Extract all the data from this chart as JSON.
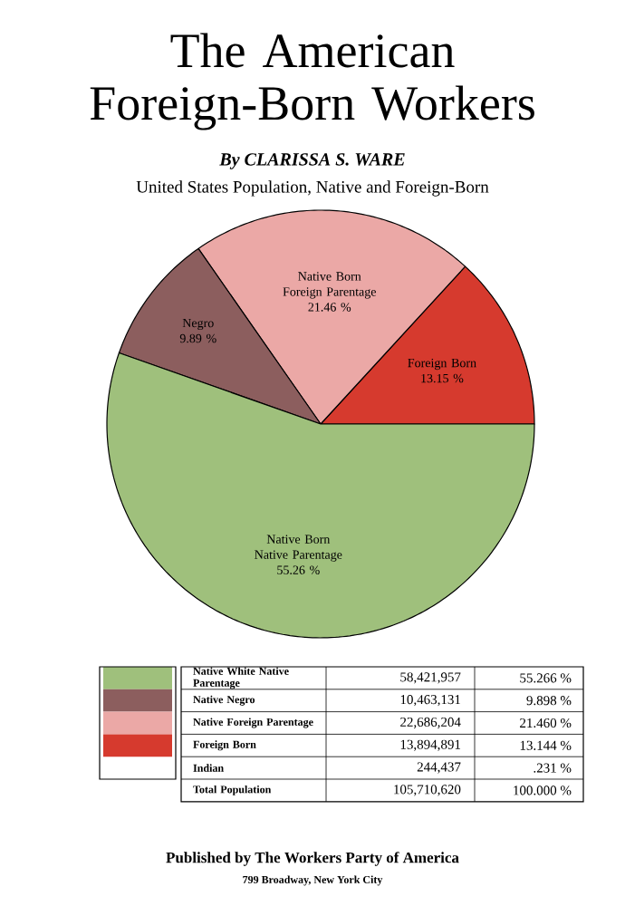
{
  "chart_data": {
    "type": "pie",
    "title": "The American Foreign-Born Workers",
    "subtitle": "United States Population, Native and Foreign-Born",
    "categories": [
      "Foreign Born",
      "Native Born Foreign Parentage",
      "Negro",
      "Native Born Native Parentage"
    ],
    "values": [
      13.15,
      21.46,
      9.89,
      55.26
    ],
    "value_labels": [
      "13.15 %",
      "21.46 %",
      "9.89 %",
      "55.26 %"
    ],
    "colors": [
      "#d63a2e",
      "#eba8a6",
      "#8c5e5e",
      "#9fc07c"
    ],
    "legend": false,
    "annotations": [
      "By CLARISSA S. WARE",
      "Native White Native Parentage",
      "58,421,957",
      "55.266 %",
      "Native Negro",
      "10,463,131",
      "9.898 %",
      "Native Foreign Parentage",
      "22,686,204",
      "21.460 %",
      "Foreign Born",
      "13,894,891",
      "13.144 %",
      "Indian",
      "244,437",
      ".231 %",
      "Total Population",
      "105,710,620",
      "100.000 %",
      "Published by The Workers Party of America",
      "799 Broadway, New York City"
    ]
  }
}
